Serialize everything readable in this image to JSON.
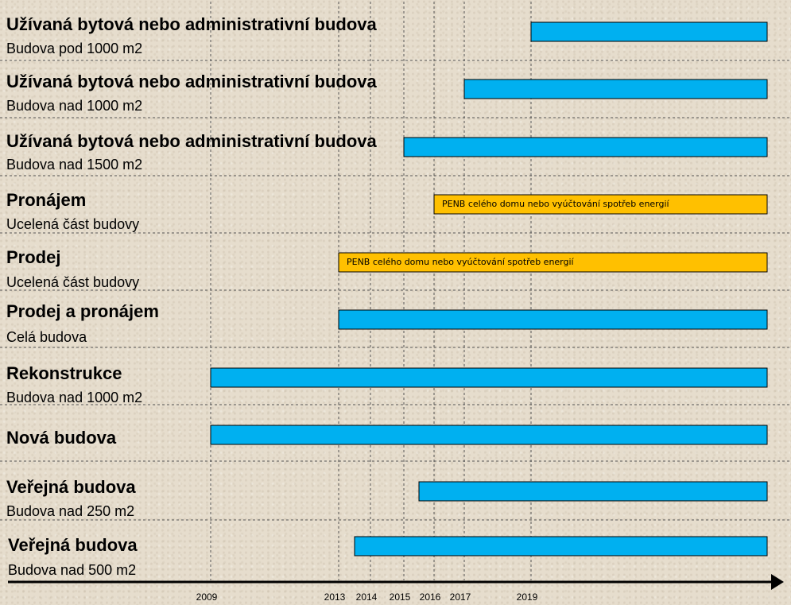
{
  "chart_data": {
    "type": "gantt",
    "x_ticks": [
      "2009",
      "2013",
      "2014",
      "2015",
      "2016",
      "2017",
      "2019"
    ],
    "colors": {
      "bar": "#00b0f0",
      "bar_text": "#ffc000",
      "grid": "#555555",
      "axis": "#000000"
    },
    "rows": [
      {
        "title": "Užívaná bytová nebo administrativní budova",
        "subtitle": "Budova pod 1000 m2",
        "start": 2019,
        "label": ""
      },
      {
        "title": "Užívaná bytová nebo administrativní budova",
        "subtitle": "Budova nad 1000 m2",
        "start": 2017,
        "label": ""
      },
      {
        "title": "Užívaná bytová nebo administrativní budova",
        "subtitle": "Budova nad 1500 m2",
        "start": 2015,
        "label": ""
      },
      {
        "title": "Pronájem",
        "subtitle": "Ucelená část budovy",
        "start": 2016,
        "label": "PENB celého domu nebo vyúčtování spotřeb energií"
      },
      {
        "title": "Prodej",
        "subtitle": "Ucelená část budovy",
        "start": 2013,
        "label": "PENB celého domu nebo vyúčtování spotřeb energií"
      },
      {
        "title": "Prodej a pronájem",
        "subtitle": "Celá budova",
        "start": 2013,
        "label": ""
      },
      {
        "title": "Rekonstrukce",
        "subtitle": "Budova nad 1000 m2",
        "start": 2009,
        "label": ""
      },
      {
        "title": "Nová budova",
        "subtitle": "",
        "start": 2009,
        "label": ""
      },
      {
        "title": "Veřejná budova",
        "subtitle": "Budova nad 250 m2",
        "start": 2015.5,
        "label": ""
      },
      {
        "title": "Veřejná budova",
        "subtitle": "Budova nad 500 m2",
        "start": 2013.5,
        "label": ""
      }
    ]
  }
}
